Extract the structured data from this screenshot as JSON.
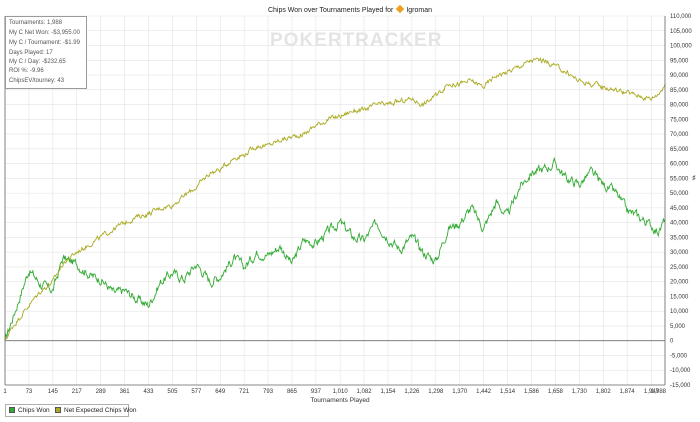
{
  "title": {
    "prefix": "Chips Won over Tournaments Played for",
    "player": "Igroman",
    "player_icon": "diamond-player-icon"
  },
  "watermark": "POKERTRACKER",
  "stats": [
    "Tournaments: 1,988",
    "My C Net Won: -$3,955.00",
    "My C / Tournament: -$1.99",
    "Days Played: 17",
    "My C / Day: -$232.65",
    "ROI %: -9.96",
    "ChipsEV/tourney: 43"
  ],
  "legend": [
    {
      "label": "Chips Won",
      "color": "#33aa33"
    },
    {
      "label": "Net Expected Chips Won",
      "color": "#aaaa22"
    }
  ],
  "chart_data": {
    "type": "line",
    "xlabel": "Tournaments Played",
    "ylabel": "",
    "xlim": [
      1,
      1988
    ],
    "ylim": [
      -15000,
      110000
    ],
    "x_ticks": [
      "1",
      "73",
      "145",
      "217",
      "289",
      "361",
      "433",
      "505",
      "577",
      "649",
      "721",
      "793",
      "865",
      "937",
      "1,010",
      "1,082",
      "1,154",
      "1,226",
      "1,298",
      "1,370",
      "1,442",
      "1,514",
      "1,586",
      "1,658",
      "1,730",
      "1,802",
      "1,874",
      "1,947",
      "1,988"
    ],
    "y_ticks": [
      "-15,000",
      "-10,000",
      "-5,000",
      "0",
      "5,000",
      "10,000",
      "15,000",
      "20,000",
      "25,000",
      "30,000",
      "35,000",
      "40,000",
      "45,000",
      "50,000",
      "55,000",
      "60,000",
      "65,000",
      "70,000",
      "75,000",
      "80,000",
      "85,000",
      "90,000",
      "95,000",
      "100,000",
      "105,000",
      "110,000"
    ],
    "grid": true,
    "legend_position": "bottom-left",
    "series": [
      {
        "name": "Chips Won",
        "color": "#33aa33",
        "x": [
          1,
          25,
          73,
          110,
          145,
          175,
          217,
          260,
          289,
          330,
          361,
          400,
          433,
          470,
          505,
          540,
          577,
          620,
          649,
          690,
          721,
          760,
          793,
          830,
          865,
          900,
          937,
          975,
          1010,
          1050,
          1082,
          1120,
          1154,
          1190,
          1226,
          1260,
          1298,
          1335,
          1370,
          1405,
          1442,
          1480,
          1514,
          1550,
          1586,
          1620,
          1658,
          1690,
          1730,
          1765,
          1802,
          1840,
          1874,
          1910,
          1947,
          1970,
          1988
        ],
        "y": [
          0,
          8000,
          24000,
          19000,
          17000,
          28000,
          26000,
          22000,
          21000,
          16000,
          17000,
          14000,
          12000,
          20000,
          23000,
          21000,
          26000,
          20000,
          22000,
          28000,
          25000,
          30000,
          29000,
          32000,
          26000,
          34000,
          33000,
          37000,
          40000,
          35000,
          34000,
          40000,
          35000,
          31000,
          35000,
          30000,
          27000,
          38000,
          40000,
          45000,
          38000,
          47000,
          42000,
          52000,
          57000,
          58000,
          60000,
          55000,
          53000,
          57000,
          53000,
          50000,
          44000,
          42000,
          39000,
          37000,
          41000
        ]
      },
      {
        "name": "Net Expected Chips Won",
        "color": "#aaaa22",
        "x": [
          1,
          25,
          73,
          110,
          145,
          175,
          217,
          260,
          289,
          330,
          361,
          400,
          433,
          470,
          505,
          540,
          577,
          620,
          649,
          690,
          721,
          760,
          793,
          830,
          865,
          900,
          937,
          975,
          1010,
          1050,
          1082,
          1120,
          1154,
          1190,
          1226,
          1260,
          1298,
          1335,
          1370,
          1405,
          1442,
          1480,
          1514,
          1550,
          1586,
          1620,
          1658,
          1690,
          1730,
          1765,
          1802,
          1840,
          1874,
          1910,
          1947,
          1970,
          1988
        ],
        "y": [
          0,
          5000,
          12000,
          17000,
          20000,
          26000,
          30000,
          33000,
          35000,
          38000,
          40000,
          42000,
          43000,
          45000,
          46000,
          49000,
          52000,
          57000,
          58000,
          62000,
          63000,
          66000,
          66000,
          68000,
          69000,
          70000,
          73000,
          75000,
          76000,
          78000,
          78000,
          80000,
          80000,
          81000,
          82000,
          80000,
          83000,
          87000,
          87000,
          88000,
          86000,
          90000,
          91000,
          93000,
          95000,
          95000,
          93000,
          91000,
          88000,
          87000,
          86000,
          85000,
          84000,
          83000,
          82000,
          84000,
          87000
        ]
      }
    ]
  }
}
